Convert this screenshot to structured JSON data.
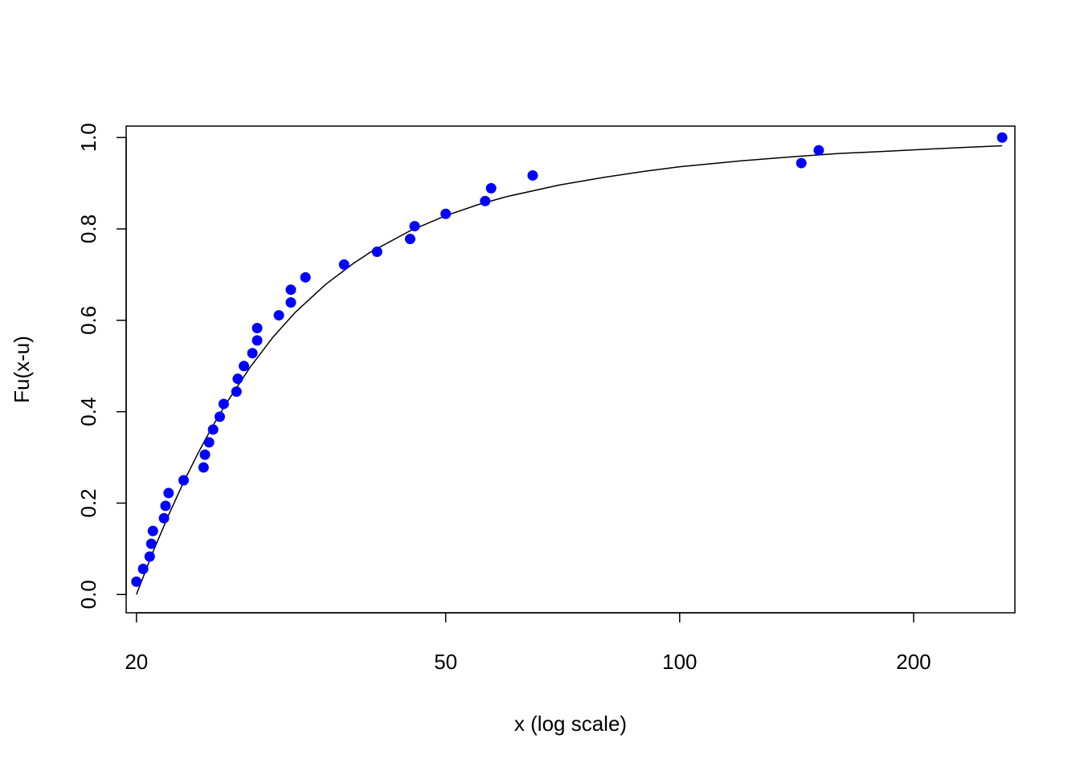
{
  "chart_data": {
    "type": "scatter",
    "title": "",
    "xlabel": "x (log scale)",
    "ylabel": "Fu(x-u)",
    "x_scale": "log",
    "xlim": [
      19.4,
      270
    ],
    "ylim": [
      -0.04,
      1.025
    ],
    "x_ticks": [
      20,
      50,
      100,
      200
    ],
    "x_tick_labels": [
      "20",
      "50",
      "100",
      "200"
    ],
    "y_ticks": [
      0,
      0.2,
      0.4,
      0.6,
      0.8,
      1
    ],
    "y_tick_labels": [
      "0.0",
      "0.2",
      "0.4",
      "0.6",
      "0.8",
      "1.0"
    ],
    "grid": false,
    "point_color": "#0000ff",
    "curve_color": "#000000",
    "points": {
      "x": [
        20.0,
        20.4,
        20.8,
        20.9,
        21.0,
        21.7,
        21.8,
        22.0,
        23.0,
        24.4,
        24.5,
        24.8,
        25.1,
        25.6,
        25.9,
        26.9,
        27.0,
        27.5,
        28.2,
        28.6,
        28.6,
        30.5,
        31.6,
        31.6,
        33.0,
        37.0,
        40.8,
        45.0,
        45.6,
        50.0,
        56.2,
        57.2,
        64.7,
        143.4,
        151.0,
        260.0
      ],
      "y": [
        0.028,
        0.056,
        0.083,
        0.111,
        0.139,
        0.167,
        0.194,
        0.222,
        0.25,
        0.278,
        0.306,
        0.333,
        0.361,
        0.389,
        0.417,
        0.444,
        0.472,
        0.5,
        0.528,
        0.556,
        0.583,
        0.611,
        0.639,
        0.667,
        0.694,
        0.722,
        0.75,
        0.778,
        0.806,
        0.833,
        0.861,
        0.889,
        0.917,
        0.944,
        0.972,
        1.0
      ]
    },
    "fitted_curve": {
      "x": [
        20,
        21,
        22,
        23,
        24,
        25,
        26,
        28,
        30,
        32,
        35,
        38,
        40,
        45,
        50,
        55,
        60,
        70,
        80,
        90,
        100,
        120,
        140,
        160,
        180,
        200,
        230,
        260
      ],
      "y": [
        0.0,
        0.093,
        0.174,
        0.246,
        0.309,
        0.365,
        0.414,
        0.497,
        0.564,
        0.617,
        0.678,
        0.724,
        0.749,
        0.796,
        0.829,
        0.853,
        0.871,
        0.896,
        0.913,
        0.926,
        0.936,
        0.949,
        0.958,
        0.965,
        0.969,
        0.973,
        0.978,
        0.982
      ]
    }
  }
}
